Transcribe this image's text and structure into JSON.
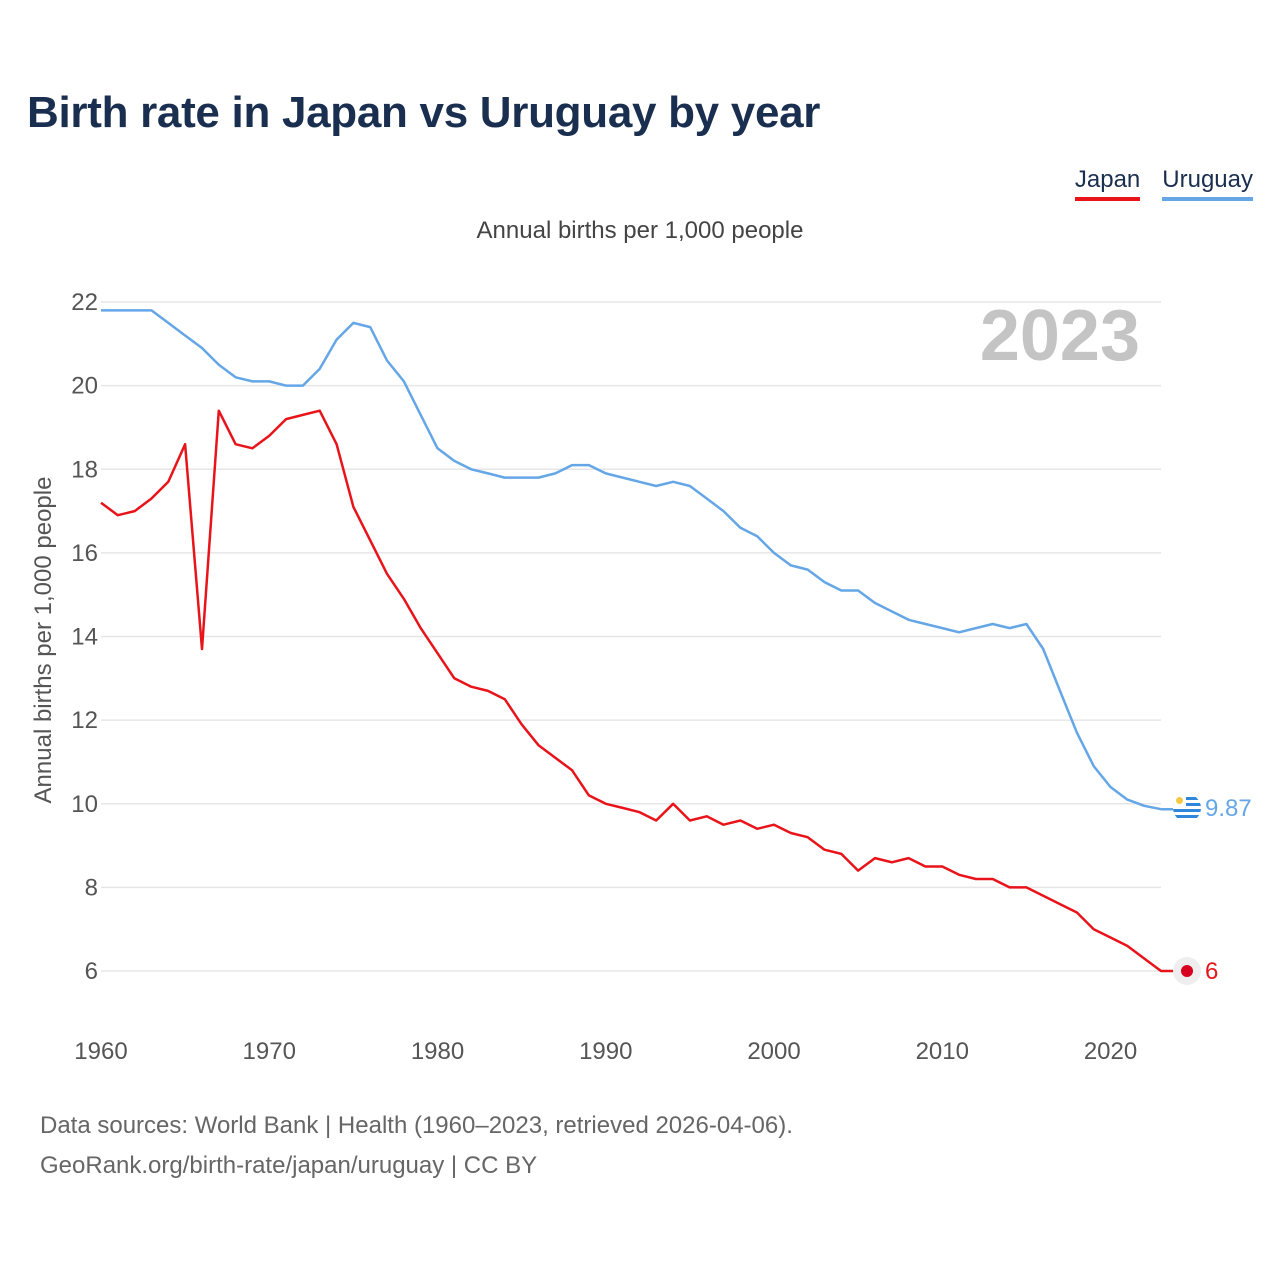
{
  "title": "Birth rate in Japan vs Uruguay by year",
  "subtitle": "Annual births per 1,000 people",
  "legend": [
    {
      "label": "Japan",
      "color": "#e8141a"
    },
    {
      "label": "Uruguay",
      "color": "#64a6e6"
    }
  ],
  "year_watermark": "2023",
  "source_line1": "Data sources: World Bank | Health (1960–2023, retrieved 2026-04-06).",
  "source_line2": "GeoRank.org/birth-rate/japan/uruguay | CC BY",
  "chart_data": {
    "type": "line",
    "title": "Birth rate in Japan vs Uruguay by year",
    "ylabel": "Annual births per 1,000 people",
    "xlabel": "",
    "xlim": [
      1960,
      2023
    ],
    "ylim": [
      5,
      22.3
    ],
    "x_ticks": [
      1960,
      1970,
      1980,
      1990,
      2000,
      2010,
      2020
    ],
    "y_ticks": [
      6,
      8,
      10,
      12,
      14,
      16,
      18,
      20,
      22
    ],
    "grid": true,
    "x": [
      1960,
      1961,
      1962,
      1963,
      1964,
      1965,
      1966,
      1967,
      1968,
      1969,
      1970,
      1971,
      1972,
      1973,
      1974,
      1975,
      1976,
      1977,
      1978,
      1979,
      1980,
      1981,
      1982,
      1983,
      1984,
      1985,
      1986,
      1987,
      1988,
      1989,
      1990,
      1991,
      1992,
      1993,
      1994,
      1995,
      1996,
      1997,
      1998,
      1999,
      2000,
      2001,
      2002,
      2003,
      2004,
      2005,
      2006,
      2007,
      2008,
      2009,
      2010,
      2011,
      2012,
      2013,
      2014,
      2015,
      2016,
      2017,
      2018,
      2019,
      2020,
      2021,
      2022,
      2023
    ],
    "series": [
      {
        "name": "Japan",
        "color": "#e8141a",
        "end_label": "6",
        "values": [
          17.2,
          16.9,
          17.0,
          17.3,
          17.7,
          18.6,
          13.7,
          19.4,
          18.6,
          18.5,
          18.8,
          19.2,
          19.3,
          19.4,
          18.6,
          17.1,
          16.3,
          15.5,
          14.9,
          14.2,
          13.6,
          13.0,
          12.8,
          12.7,
          12.5,
          11.9,
          11.4,
          11.1,
          10.8,
          10.2,
          10.0,
          9.9,
          9.8,
          9.6,
          10.0,
          9.6,
          9.7,
          9.5,
          9.6,
          9.4,
          9.5,
          9.3,
          9.2,
          8.9,
          8.8,
          8.4,
          8.7,
          8.6,
          8.7,
          8.5,
          8.5,
          8.3,
          8.2,
          8.2,
          8.0,
          8.0,
          7.8,
          7.6,
          7.4,
          7.0,
          6.8,
          6.6,
          6.3,
          6.0
        ]
      },
      {
        "name": "Uruguay",
        "color": "#64a6e6",
        "end_label": "9.87",
        "values": [
          21.8,
          21.8,
          21.8,
          21.8,
          21.5,
          21.2,
          20.9,
          20.5,
          20.2,
          20.1,
          20.1,
          20.0,
          20.0,
          20.4,
          21.1,
          21.5,
          21.4,
          20.6,
          20.1,
          19.3,
          18.5,
          18.2,
          18.0,
          17.9,
          17.8,
          17.8,
          17.8,
          17.9,
          18.1,
          18.1,
          17.9,
          17.8,
          17.7,
          17.6,
          17.7,
          17.6,
          17.3,
          17.0,
          16.6,
          16.4,
          16.0,
          15.7,
          15.6,
          15.3,
          15.1,
          15.1,
          14.8,
          14.6,
          14.4,
          14.3,
          14.2,
          14.1,
          14.2,
          14.3,
          14.2,
          14.3,
          13.7,
          12.7,
          11.7,
          10.9,
          10.4,
          10.1,
          9.95,
          9.87
        ]
      }
    ]
  }
}
